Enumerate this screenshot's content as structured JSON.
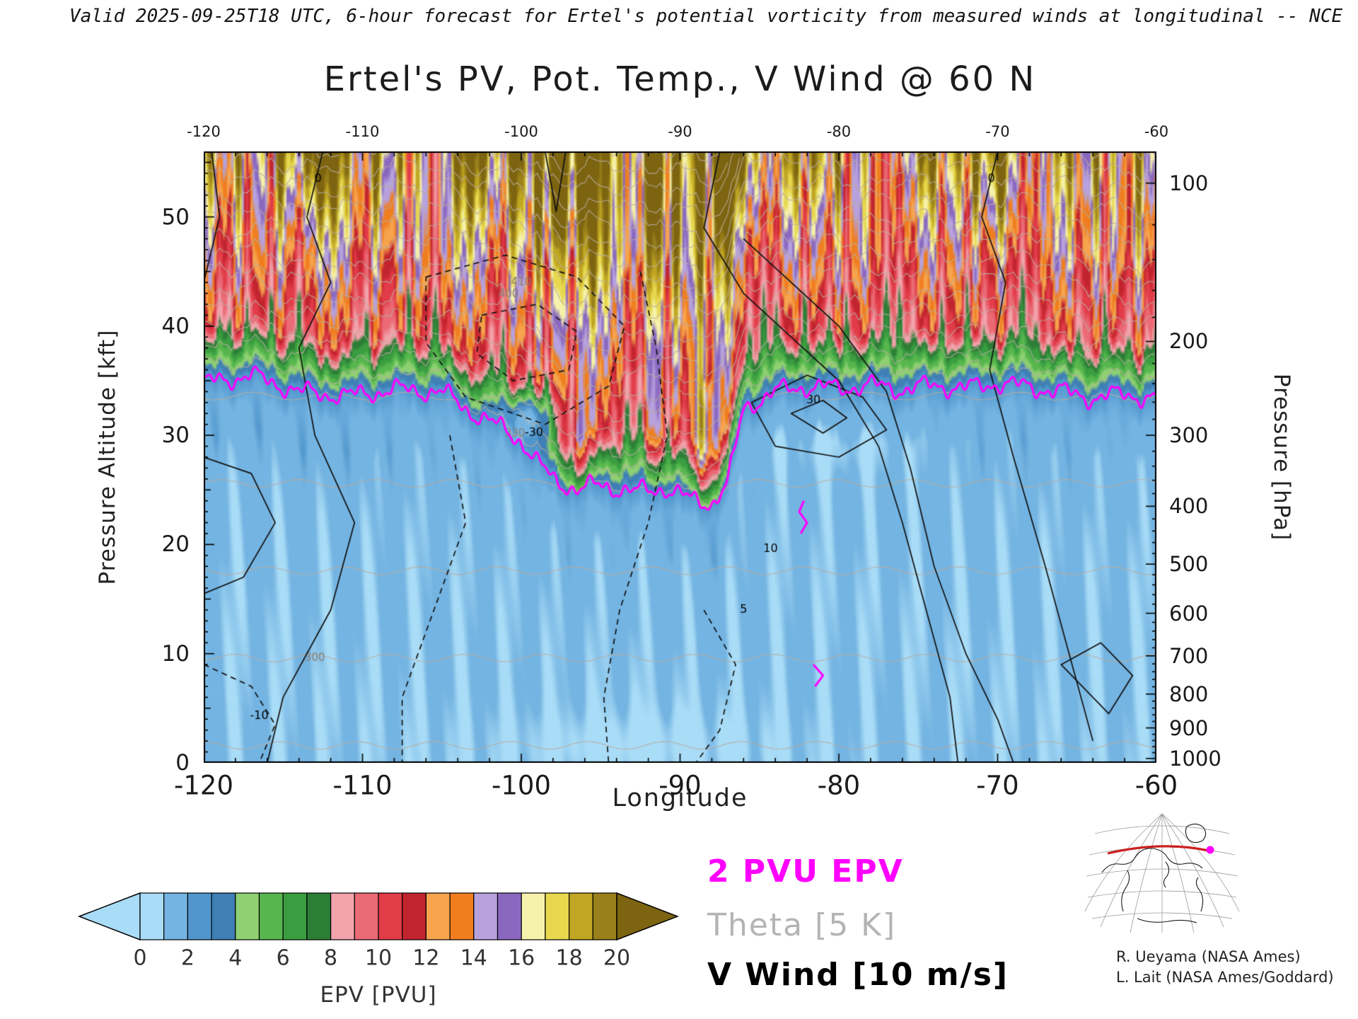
{
  "header": {
    "valid_line": "Valid 2025-09-25T18 UTC, 6-hour forecast for Ertel's potential vorticity from measured winds at longitudinal -- NCE"
  },
  "title": "Ertel's PV, Pot. Temp., V Wind @ 60 N",
  "axes": {
    "x": {
      "label": "Longitude",
      "ticks": [
        -120,
        -110,
        -100,
        -90,
        -80,
        -70,
        -60
      ],
      "minor_step_deg": 2,
      "range": [
        -120,
        -60
      ]
    },
    "left": {
      "label": "Pressure Altitude [kft]",
      "ticks": [
        0,
        10,
        20,
        30,
        40,
        50
      ],
      "range_kft": [
        0,
        56
      ]
    },
    "right": {
      "label": "Pressure [hPa]",
      "ticks": [
        100,
        200,
        300,
        400,
        500,
        600,
        700,
        800,
        900,
        1000
      ]
    }
  },
  "colorbar": {
    "caption": "EPV [PVU]",
    "ticks": [
      0,
      2,
      4,
      6,
      8,
      10,
      12,
      14,
      16,
      18,
      20
    ],
    "cell_width_pvu": 1,
    "cells": [
      "#a9dcf7",
      "#74b4e2",
      "#5096cc",
      "#3f7fb5",
      "#8fd172",
      "#57b74e",
      "#3a9e41",
      "#2c7d35",
      "#f2a3ab",
      "#ea6a75",
      "#e23c49",
      "#c2242f",
      "#f7a44e",
      "#f07e1f",
      "#b7a2de",
      "#8a68c0",
      "#f6f2ab",
      "#e7d84e",
      "#c0a622",
      "#99801a"
    ],
    "arrow_left": "#a9dcf7",
    "arrow_right": "#7d6410"
  },
  "legend": {
    "pv_line": {
      "label": "2 PVU EPV",
      "color": "#ff00ff"
    },
    "theta": {
      "label": "Theta [5 K]",
      "color": "#b4b4b4"
    },
    "vwind": {
      "label": "V Wind [10 m/s]",
      "color": "#000000"
    }
  },
  "credits": {
    "line1": "R. Ueyama (NASA Ames)",
    "line2": "L. Lait (NASA Ames/Goddard)"
  },
  "chart_data": {
    "type": "heatmap",
    "title": "Ertel's PV, Pot. Temp., V Wind @ 60 N",
    "xlabel": "Longitude",
    "ylabel_left": "Pressure Altitude [kft]",
    "ylabel_right": "Pressure [hPa]",
    "x_range": [
      -120,
      -60
    ],
    "y_range_kft": [
      0,
      56
    ],
    "fill_variable": "Ertel potential vorticity (EPV)",
    "fill_units": "PVU",
    "fill_min": 0,
    "fill_max": 20,
    "fill_cell_interval": 1,
    "fill_tick_interval": 2,
    "tropopause_2pvu": {
      "lon": [
        -120,
        -117,
        -114,
        -111,
        -108,
        -105,
        -103,
        -101,
        -100,
        -99,
        -98,
        -96.5,
        -95,
        -93,
        -91,
        -89.5,
        -88,
        -87,
        -86.5,
        -86,
        -84,
        -82,
        -80,
        -78,
        -76,
        -74,
        -72,
        -70,
        -68,
        -66,
        -64,
        -62,
        -60
      ],
      "alt_kft": [
        34.8,
        35.5,
        34.0,
        33.6,
        34.2,
        34.0,
        32.0,
        30.5,
        29.5,
        27.5,
        26.0,
        25.0,
        25.5,
        24.8,
        25.2,
        24.2,
        23.8,
        25.5,
        29.0,
        32.5,
        34.0,
        34.5,
        34.3,
        34.6,
        34.2,
        34.6,
        34.3,
        34.8,
        34.4,
        34.0,
        33.4,
        33.8,
        33.3
      ]
    },
    "pressure_ticks": {
      "hPa": [
        100,
        200,
        300,
        400,
        500,
        600,
        700,
        800,
        900,
        1000
      ],
      "alt_kft": [
        53.1,
        38.6,
        30.0,
        23.5,
        18.2,
        13.7,
        9.8,
        6.3,
        3.2,
        0.4
      ]
    },
    "theta_contour_interval_K": 5,
    "theta_surface_labels_K": [
      300,
      330,
      400,
      410
    ],
    "vwind_contour_interval_ms": 10,
    "vwind_contour_labels_ms": [
      -30,
      30,
      10,
      -10,
      0,
      0,
      5
    ]
  }
}
